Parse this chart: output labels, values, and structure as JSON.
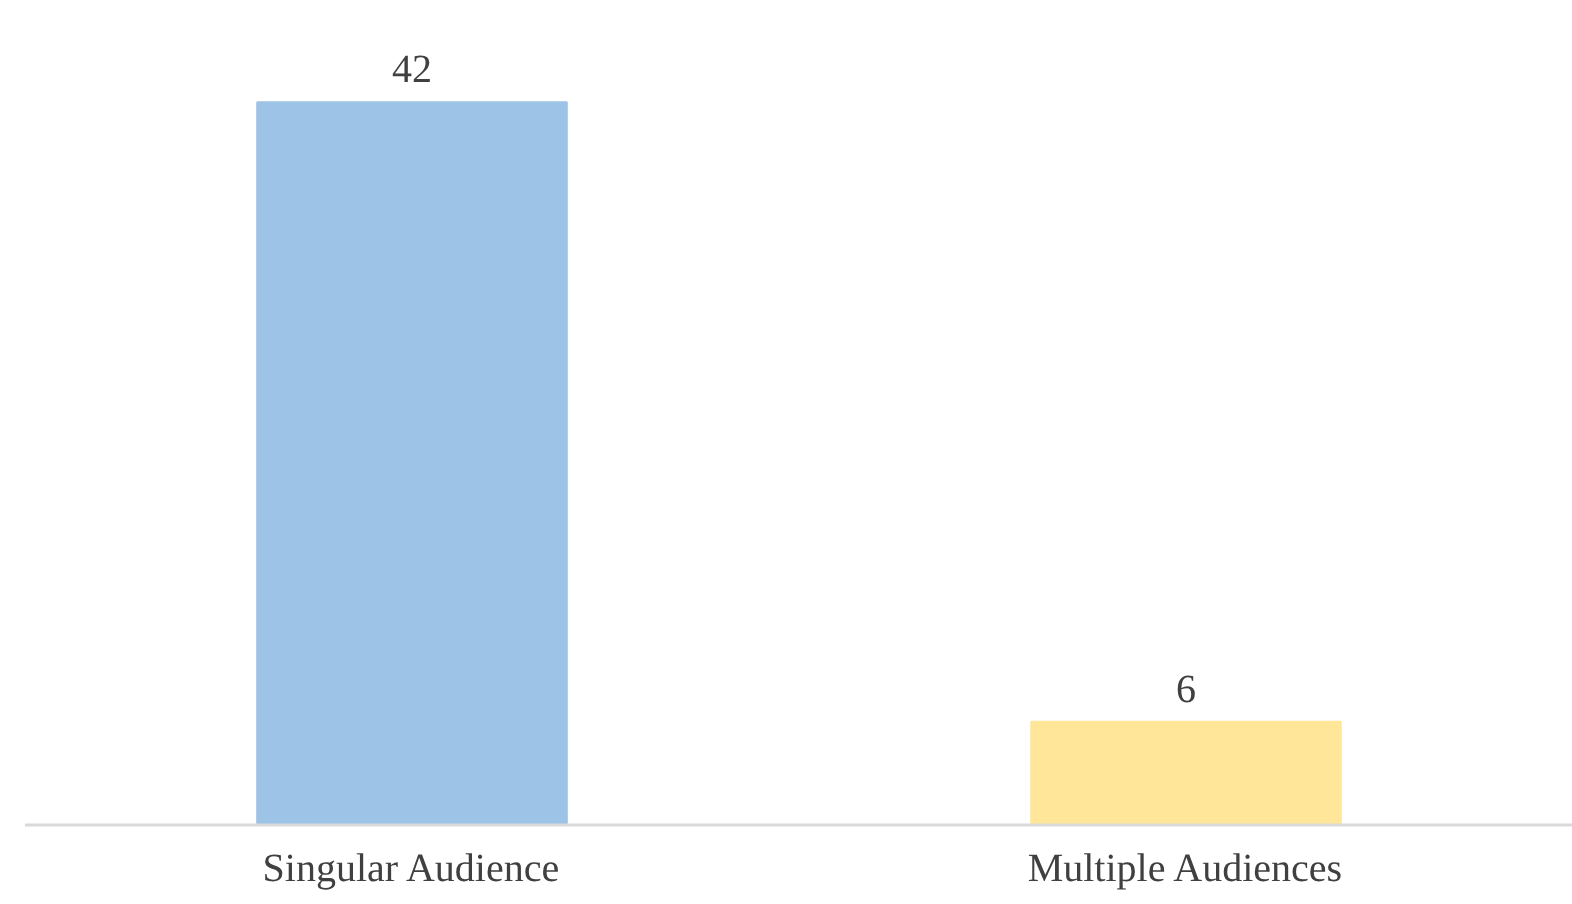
{
  "chart_data": {
    "type": "bar",
    "categories": [
      "Singular Audience",
      "Multiple Audiences"
    ],
    "values": [
      42,
      6
    ],
    "colors": [
      "#9dc3e6",
      "#ffe699"
    ],
    "data_labels": true
  }
}
